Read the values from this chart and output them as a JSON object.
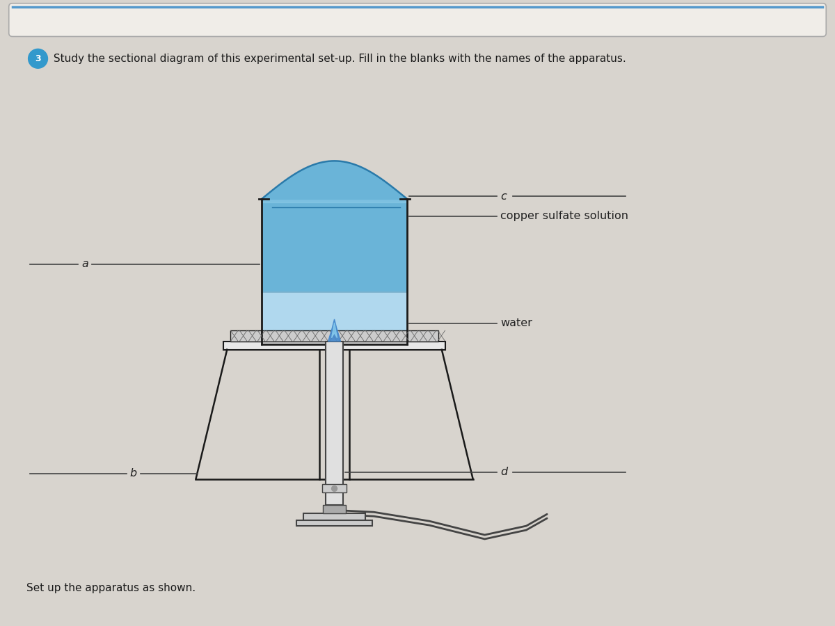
{
  "page_bg": "#d8d4ce",
  "title_circle": "3",
  "title_text": " Study the sectional diagram of this experimental set-up. Fill in the blanks with the names of the apparatus.",
  "bottom_text": "Set up the apparatus as shown.",
  "label_a": "a",
  "label_b": "b",
  "label_c": "c",
  "label_d": "d",
  "label_copper": "copper sulfate solution",
  "label_water": "water",
  "beaker_stroke": "#1a1a1a",
  "copper_color": "#6ab4d8",
  "copper_dark": "#2a7aaa",
  "copper_light": "#90cce8",
  "water_color": "#b0d8ee",
  "water_dark": "#7ab0cc",
  "flame_blue": "#4488cc",
  "flame_light": "#88ccee",
  "tripod_color": "#1a1a1a",
  "gauze_color": "#888888",
  "bunsen_color": "#444444",
  "label_color": "#222222",
  "line_color": "#444444",
  "title_color": "#1a1a1a",
  "circle_color": "#3399cc"
}
